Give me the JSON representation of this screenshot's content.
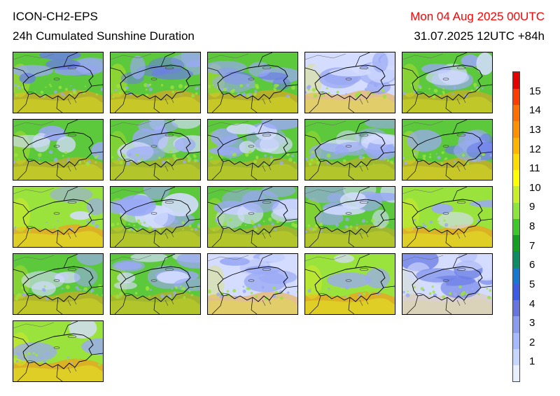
{
  "header": {
    "model": "ICON-CH2-EPS",
    "product": "24h Cumulated Sunshine Duration",
    "valid_time": "Mon 04 Aug 2025 00UTC",
    "run_time": "31.07.2025 12UTC +84h",
    "valid_time_color": "#ff0000"
  },
  "members": [
    {
      "index": 1,
      "sunshine_character": "mixed-cloudy-north"
    },
    {
      "index": 2,
      "sunshine_character": "mixed-cloudy-north"
    },
    {
      "index": 3,
      "sunshine_character": "mixed-cloudy-north"
    },
    {
      "index": 4,
      "sunshine_character": "cloudy-north"
    },
    {
      "index": 5,
      "sunshine_character": "mixed"
    },
    {
      "index": 6,
      "sunshine_character": "mixed"
    },
    {
      "index": 7,
      "sunshine_character": "cloudy"
    },
    {
      "index": 8,
      "sunshine_character": "cloudy"
    },
    {
      "index": 9,
      "sunshine_character": "cloudy"
    },
    {
      "index": 10,
      "sunshine_character": "mixed-cloudy-north"
    },
    {
      "index": 11,
      "sunshine_character": "sunny"
    },
    {
      "index": 12,
      "sunshine_character": "cloudy"
    },
    {
      "index": 13,
      "sunshine_character": "cloudy"
    },
    {
      "index": 14,
      "sunshine_character": "cloudy"
    },
    {
      "index": 15,
      "sunshine_character": "sunny"
    },
    {
      "index": 16,
      "sunshine_character": "mixed"
    },
    {
      "index": 17,
      "sunshine_character": "cloudy"
    },
    {
      "index": 18,
      "sunshine_character": "cloudy-north"
    },
    {
      "index": 19,
      "sunshine_character": "sunny"
    },
    {
      "index": 20,
      "sunshine_character": "very-cloudy"
    },
    {
      "index": 21,
      "sunshine_character": "sunny"
    }
  ],
  "colorbar": {
    "labels": [
      "15",
      "14",
      "13",
      "12",
      "11",
      "10",
      "9",
      "8",
      "7",
      "6",
      "5",
      "4",
      "3",
      "2",
      "1"
    ],
    "colors": [
      "#e8f0ff",
      "#c6d6ff",
      "#a6baff",
      "#8a9cf0",
      "#6674e0",
      "#3c5ae6",
      "#1478d2",
      "#0c8c64",
      "#12a020",
      "#3cc828",
      "#8ce63c",
      "#c8f028",
      "#ffff00",
      "#ffdc00",
      "#ffb400",
      "#ff9100",
      "#ff6e00",
      "#ff3c00",
      "#e60000"
    ],
    "range": [
      0,
      16
    ],
    "unit": ""
  },
  "palette": {
    "cloud_light": "#d4dcff",
    "cloud": "#9aa9f4",
    "cloud_dark": "#6b7ee6",
    "green_mid": "#5cc83c",
    "green_light": "#9ae33c",
    "yellow": "#e0e826",
    "orange": "#f0a21e",
    "border": "#000000",
    "lake": "#444444"
  }
}
